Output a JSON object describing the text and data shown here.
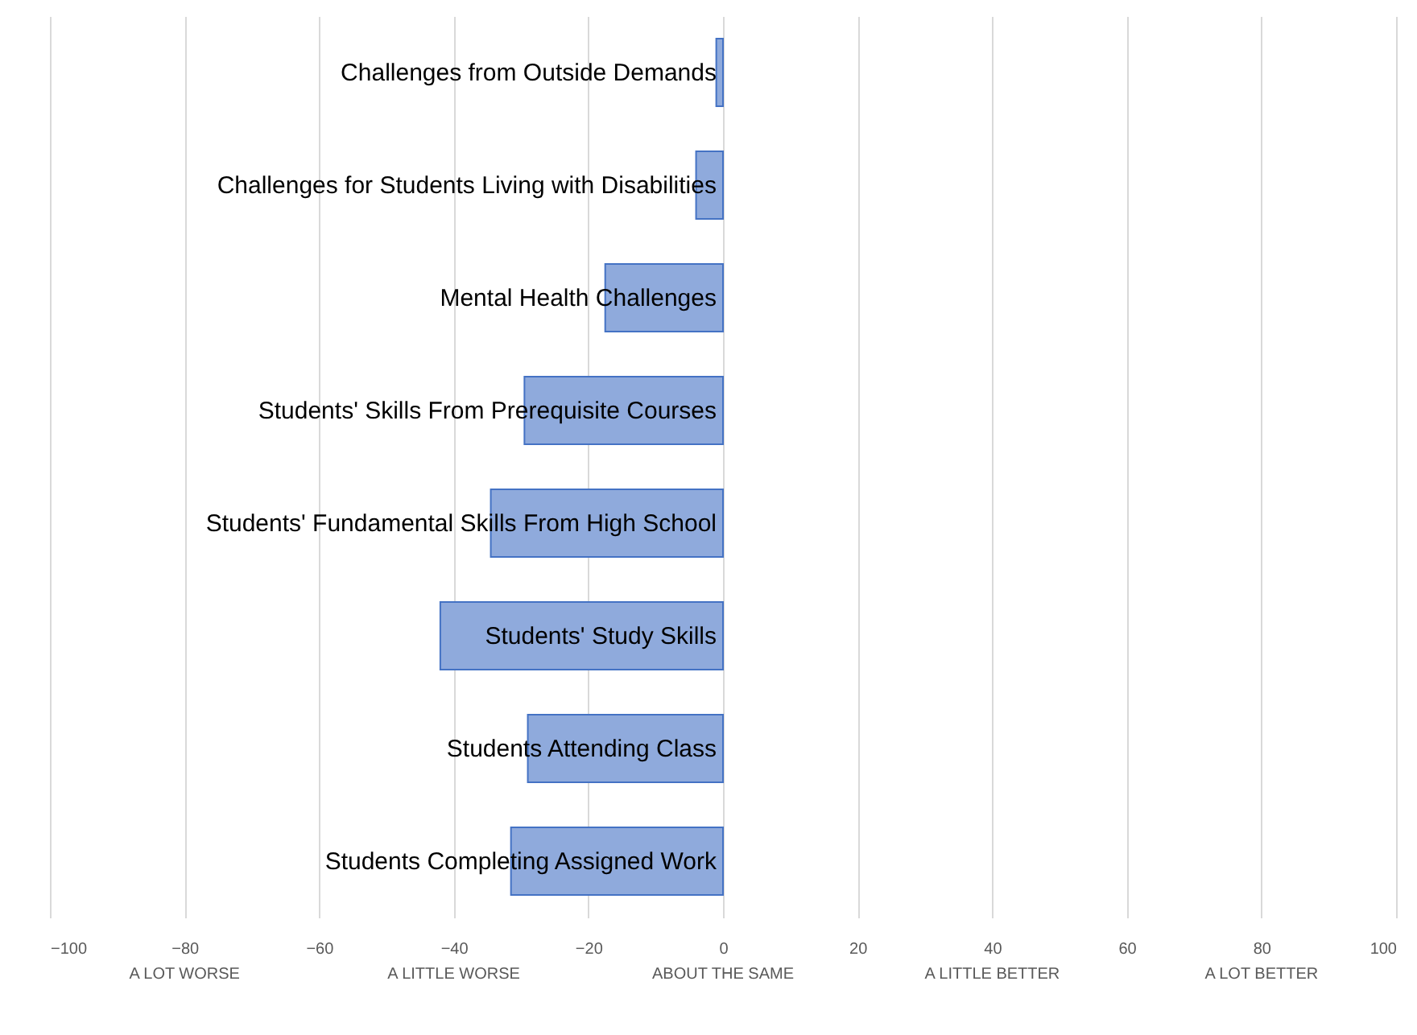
{
  "chart_data": {
    "type": "bar",
    "orientation": "horizontal",
    "categories": [
      "Challenges from Outside Demands",
      "Challenges for Students Living with Disabilities",
      "Mental Health Challenges",
      "Students' Skills From Prerequisite Courses",
      "Students' Fundamental Skills From High School",
      "Students' Study Skills",
      "Students Attending Class",
      "Students Completing Assigned Work"
    ],
    "values": [
      -1,
      -4,
      -17.5,
      -29.5,
      -34.5,
      -42,
      -29,
      -31.5
    ],
    "color": "#8faadc",
    "xlim": [
      -100,
      100
    ],
    "xticks": [
      -100,
      -80,
      -60,
      -40,
      -20,
      0,
      20,
      40,
      60,
      80,
      100
    ],
    "grid": "x",
    "annotations": [
      "A LOT WORSE",
      "A LITTLE WORSE",
      "ABOUT THE SAME",
      "A LITTLE BETTER",
      "A LOT BETTER"
    ]
  }
}
